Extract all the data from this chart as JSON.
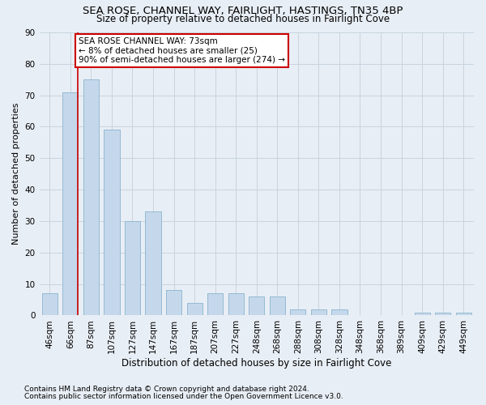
{
  "title1": "SEA ROSE, CHANNEL WAY, FAIRLIGHT, HASTINGS, TN35 4BP",
  "title2": "Size of property relative to detached houses in Fairlight Cove",
  "xlabel": "Distribution of detached houses by size in Fairlight Cove",
  "ylabel": "Number of detached properties",
  "categories": [
    "46sqm",
    "66sqm",
    "87sqm",
    "107sqm",
    "127sqm",
    "147sqm",
    "167sqm",
    "187sqm",
    "207sqm",
    "227sqm",
    "248sqm",
    "268sqm",
    "288sqm",
    "308sqm",
    "328sqm",
    "348sqm",
    "368sqm",
    "389sqm",
    "409sqm",
    "429sqm",
    "449sqm"
  ],
  "values": [
    7,
    71,
    75,
    59,
    30,
    33,
    8,
    4,
    7,
    7,
    6,
    6,
    2,
    2,
    2,
    0,
    0,
    0,
    1,
    1,
    1
  ],
  "bar_color": "#c5d8eb",
  "bar_edge_color": "#8ab4cc",
  "grid_color": "#c8d4e0",
  "background_color": "#e8eef5",
  "vline_x": 1.35,
  "vline_color": "#cc0000",
  "annotation_text": "SEA ROSE CHANNEL WAY: 73sqm\n← 8% of detached houses are smaller (25)\n90% of semi-detached houses are larger (274) →",
  "annotation_box_facecolor": "#ffffff",
  "annotation_box_edgecolor": "#cc0000",
  "ylim": [
    0,
    90
  ],
  "yticks": [
    0,
    10,
    20,
    30,
    40,
    50,
    60,
    70,
    80,
    90
  ],
  "footnote1": "Contains HM Land Registry data © Crown copyright and database right 2024.",
  "footnote2": "Contains public sector information licensed under the Open Government Licence v3.0.",
  "title1_fontsize": 9.5,
  "title2_fontsize": 8.5,
  "xlabel_fontsize": 8.5,
  "ylabel_fontsize": 8,
  "tick_fontsize": 7.5,
  "annot_fontsize": 7.5,
  "footnote_fontsize": 6.5
}
